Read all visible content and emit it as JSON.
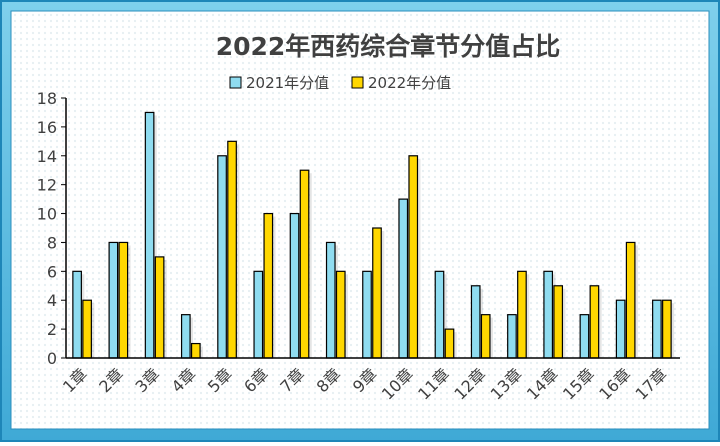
{
  "chart_data": {
    "type": "bar",
    "title": "2022年西药综合章节分值占比",
    "categories": [
      "1章",
      "2章",
      "3章",
      "4章",
      "5章",
      "6章",
      "7章",
      "8章",
      "9章",
      "10章",
      "11章",
      "12章",
      "13章",
      "14章",
      "15章",
      "16章",
      "17章"
    ],
    "series": [
      {
        "name": "2021年分值",
        "color": "#8fdcf0",
        "values": [
          6,
          8,
          17,
          3,
          14,
          6,
          10,
          8,
          6,
          11,
          6,
          5,
          3,
          6,
          3,
          4,
          4
        ]
      },
      {
        "name": "2022年分值",
        "color": "#ffd700",
        "values": [
          4,
          8,
          7,
          1,
          15,
          10,
          13,
          6,
          9,
          14,
          2,
          3,
          6,
          5,
          5,
          8,
          4
        ]
      }
    ],
    "yticks": [
      0,
      2,
      4,
      6,
      8,
      10,
      12,
      14,
      16,
      18
    ],
    "ylim": [
      0,
      18
    ],
    "xlabel": "",
    "ylabel": "",
    "legend_position": "top-center",
    "grid": false
  }
}
